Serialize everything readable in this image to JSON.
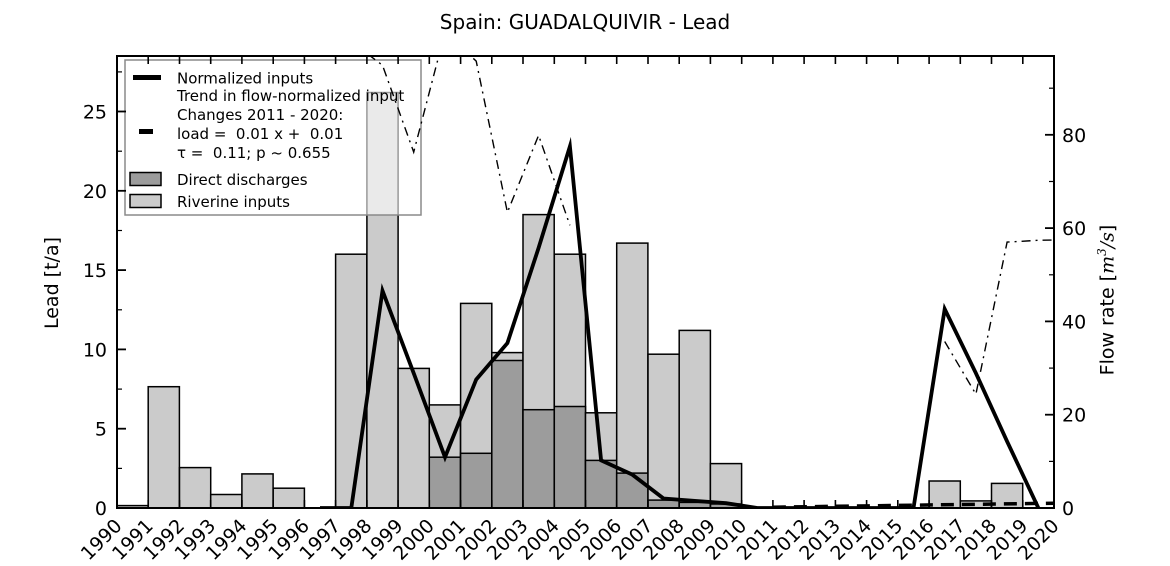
{
  "chart_data": {
    "type": "bar",
    "title": "Spain: GUADALQUIVIR - Lead",
    "ylabel_left": "Lead [t/a]",
    "ylabel_right": {
      "text": "Flow rate [m³/s]",
      "math_part": "m³/s"
    },
    "xlim": [
      1990,
      2020
    ],
    "ylim_left": [
      0,
      28.5
    ],
    "ylim_right": [
      0,
      96.9
    ],
    "yticks_left": [
      0,
      5,
      10,
      15,
      20,
      25
    ],
    "yticks_right": [
      0,
      20,
      40,
      60,
      80
    ],
    "x_tick_years": [
      1990,
      1991,
      1992,
      1993,
      1994,
      1995,
      1996,
      1997,
      1998,
      1999,
      2000,
      2001,
      2002,
      2003,
      2004,
      2005,
      2006,
      2007,
      2008,
      2009,
      2010,
      2011,
      2012,
      2013,
      2014,
      2015,
      2016,
      2017,
      2018,
      2019,
      2020
    ],
    "bar_series": {
      "years": [
        1990,
        1991,
        1992,
        1993,
        1994,
        1995,
        1996,
        1997,
        1998,
        1999,
        2000,
        2001,
        2002,
        2003,
        2004,
        2005,
        2006,
        2007,
        2008,
        2009,
        2010,
        2011,
        2012,
        2013,
        2014,
        2015,
        2016,
        2017,
        2018,
        2019
      ],
      "riverine_inputs": [
        0.15,
        7.65,
        2.55,
        0.85,
        2.15,
        1.25,
        0,
        16.0,
        26.2,
        8.8,
        6.5,
        12.9,
        9.8,
        18.5,
        16.0,
        6.0,
        16.7,
        9.7,
        11.2,
        2.8,
        0,
        0,
        0,
        0,
        0,
        0,
        1.7,
        0.45,
        1.55,
        0
      ],
      "direct_discharges": [
        0,
        0,
        0,
        0,
        0,
        0,
        0,
        0,
        0,
        0,
        3.2,
        3.45,
        9.3,
        6.2,
        6.4,
        3.0,
        2.2,
        0.5,
        0.35,
        0.25,
        0,
        0,
        0,
        0,
        0,
        0,
        0,
        0,
        0,
        0
      ]
    },
    "normalized_inputs_line": {
      "points_at_year_centers": [
        [
          1996,
          0
        ],
        [
          1997,
          0
        ],
        [
          1998,
          13.7
        ],
        [
          1999,
          8.5
        ],
        [
          2000,
          3.2
        ],
        [
          2001,
          8.1
        ],
        [
          2002,
          10.4
        ],
        [
          2003,
          16.4
        ],
        [
          2004,
          22.8
        ],
        [
          2005,
          3.0
        ],
        [
          2006,
          2.1
        ],
        [
          2007,
          0.6
        ],
        [
          2008,
          0.45
        ],
        [
          2009,
          0.3
        ],
        [
          2010,
          0
        ],
        [
          2011,
          0
        ],
        [
          2012,
          0
        ],
        [
          2013,
          0
        ],
        [
          2014,
          0
        ],
        [
          2015,
          0
        ],
        [
          2016,
          12.55
        ],
        [
          2017,
          8.5
        ],
        [
          2018,
          4.2
        ],
        [
          2019,
          0
        ]
      ]
    },
    "flow_rate_line": {
      "segments": [
        [
          [
            1997,
            100
          ],
          [
            1998,
            94.9
          ],
          [
            1999,
            76.3
          ],
          [
            2000,
            102
          ],
          [
            2001,
            95.8
          ],
          [
            2002,
            63.4
          ],
          [
            2003,
            79.9
          ],
          [
            2004,
            60.6
          ]
        ],
        [
          [
            2016,
            35.7
          ],
          [
            2017,
            24.4
          ],
          [
            2018,
            57.0
          ],
          [
            2019,
            57.4
          ],
          [
            2020,
            57.5
          ]
        ]
      ]
    },
    "trend_line": {
      "x_start": 2011,
      "x_end": 2020,
      "value_start": 0.05,
      "value_end": 0.3
    },
    "legend": {
      "normalized_label": "Normalized inputs",
      "trend_label_lines": [
        "Trend in flow-normalized input",
        "Changes 2011 - 2020:",
        "load =  0.01 x +  0.01",
        "τ =  0.11; p ~ 0.655"
      ],
      "direct_label": "Direct discharges",
      "riverine_label": "Riverine inputs"
    },
    "colors": {
      "riverine_fill": "#cbcbcb",
      "direct_fill": "#9c9c9c",
      "bar_edge": "#000000",
      "line_color": "#000000",
      "legend_border": "#8a8a8a"
    }
  }
}
